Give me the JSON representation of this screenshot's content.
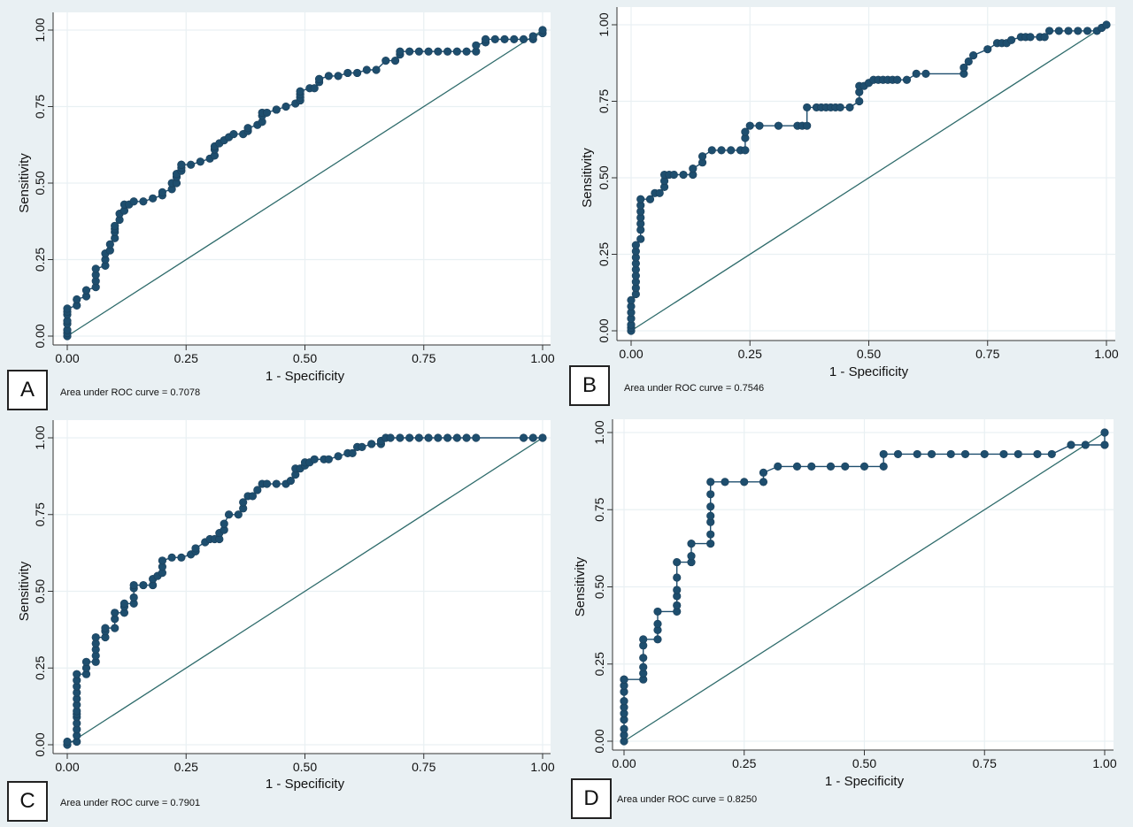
{
  "chart_data": [
    {
      "type": "scatter",
      "panel_label": "A",
      "xlabel": "1 - Specificity",
      "ylabel": "Sensitivity",
      "xlim": [
        0,
        1
      ],
      "ylim": [
        0,
        1
      ],
      "xticks": [
        "0.00",
        "0.25",
        "0.50",
        "0.75",
        "1.00"
      ],
      "yticks": [
        "0.00",
        "0.25",
        "0.50",
        "0.75",
        "1.00"
      ],
      "grid": true,
      "note": "Area under ROC curve = 0.7078",
      "roc_x": [
        0,
        0,
        0,
        0,
        0,
        0,
        0,
        0,
        0.02,
        0.02,
        0.04,
        0.04,
        0.06,
        0.06,
        0.06,
        0.06,
        0.08,
        0.08,
        0.08,
        0.09,
        0.09,
        0.1,
        0.1,
        0.1,
        0.1,
        0.11,
        0.11,
        0.12,
        0.12,
        0.13,
        0.14,
        0.16,
        0.18,
        0.2,
        0.2,
        0.22,
        0.22,
        0.23,
        0.23,
        0.23,
        0.24,
        0.24,
        0.24,
        0.24,
        0.26,
        0.28,
        0.3,
        0.31,
        0.31,
        0.31,
        0.32,
        0.33,
        0.34,
        0.35,
        0.37,
        0.38,
        0.38,
        0.4,
        0.41,
        0.41,
        0.41,
        0.42,
        0.44,
        0.44,
        0.46,
        0.48,
        0.49,
        0.49,
        0.49,
        0.49,
        0.51,
        0.52,
        0.53,
        0.53,
        0.53,
        0.55,
        0.57,
        0.59,
        0.61,
        0.63,
        0.65,
        0.67,
        0.69,
        0.7,
        0.7,
        0.72,
        0.74,
        0.76,
        0.78,
        0.8,
        0.82,
        0.84,
        0.86,
        0.86,
        0.88,
        0.88,
        0.9,
        0.92,
        0.94,
        0.96,
        0.98,
        0.98,
        1,
        1
      ],
      "roc_y": [
        0,
        0.01,
        0.02,
        0.04,
        0.05,
        0.07,
        0.08,
        0.09,
        0.1,
        0.12,
        0.13,
        0.15,
        0.16,
        0.18,
        0.2,
        0.22,
        0.23,
        0.25,
        0.27,
        0.28,
        0.3,
        0.32,
        0.34,
        0.35,
        0.36,
        0.38,
        0.4,
        0.41,
        0.43,
        0.43,
        0.44,
        0.44,
        0.45,
        0.46,
        0.47,
        0.48,
        0.5,
        0.5,
        0.52,
        0.53,
        0.54,
        0.55,
        0.56,
        0.56,
        0.56,
        0.57,
        0.58,
        0.59,
        0.61,
        0.62,
        0.63,
        0.64,
        0.65,
        0.66,
        0.66,
        0.67,
        0.68,
        0.69,
        0.7,
        0.72,
        0.73,
        0.73,
        0.74,
        0.74,
        0.75,
        0.76,
        0.77,
        0.78,
        0.79,
        0.8,
        0.81,
        0.81,
        0.83,
        0.84,
        0.84,
        0.85,
        0.85,
        0.86,
        0.86,
        0.87,
        0.87,
        0.9,
        0.9,
        0.92,
        0.93,
        0.93,
        0.93,
        0.93,
        0.93,
        0.93,
        0.93,
        0.93,
        0.93,
        0.95,
        0.96,
        0.97,
        0.97,
        0.97,
        0.97,
        0.97,
        0.97,
        0.98,
        0.99,
        1
      ]
    },
    {
      "type": "scatter",
      "panel_label": "B",
      "xlabel": "1 - Specificity",
      "ylabel": "Sensitivity",
      "xlim": [
        0,
        1
      ],
      "ylim": [
        0,
        1
      ],
      "xticks": [
        "0.00",
        "0.25",
        "0.50",
        "0.75",
        "1.00"
      ],
      "yticks": [
        "0.00",
        "0.25",
        "0.50",
        "0.75",
        "1.00"
      ],
      "grid": true,
      "note": "Area under ROC curve = 0.7546",
      "roc_x": [
        0,
        0,
        0,
        0,
        0,
        0,
        0,
        0.01,
        0.01,
        0.01,
        0.01,
        0.01,
        0.01,
        0.01,
        0.01,
        0.01,
        0.02,
        0.02,
        0.02,
        0.02,
        0.02,
        0.02,
        0.02,
        0.04,
        0.05,
        0.06,
        0.07,
        0.07,
        0.07,
        0.08,
        0.09,
        0.11,
        0.13,
        0.13,
        0.15,
        0.15,
        0.17,
        0.19,
        0.21,
        0.23,
        0.24,
        0.24,
        0.24,
        0.25,
        0.27,
        0.31,
        0.35,
        0.36,
        0.37,
        0.37,
        0.39,
        0.4,
        0.41,
        0.42,
        0.43,
        0.44,
        0.46,
        0.48,
        0.48,
        0.48,
        0.49,
        0.5,
        0.51,
        0.52,
        0.53,
        0.54,
        0.55,
        0.56,
        0.58,
        0.6,
        0.62,
        0.7,
        0.7,
        0.71,
        0.72,
        0.75,
        0.77,
        0.78,
        0.79,
        0.8,
        0.82,
        0.83,
        0.84,
        0.86,
        0.87,
        0.88,
        0.9,
        0.92,
        0.94,
        0.96,
        0.98,
        0.99,
        1
      ],
      "roc_y": [
        0,
        0.01,
        0.02,
        0.04,
        0.06,
        0.08,
        0.1,
        0.12,
        0.14,
        0.16,
        0.18,
        0.2,
        0.22,
        0.24,
        0.26,
        0.28,
        0.3,
        0.33,
        0.35,
        0.37,
        0.39,
        0.41,
        0.43,
        0.43,
        0.45,
        0.45,
        0.47,
        0.49,
        0.51,
        0.51,
        0.51,
        0.51,
        0.51,
        0.53,
        0.55,
        0.57,
        0.59,
        0.59,
        0.59,
        0.59,
        0.59,
        0.63,
        0.65,
        0.67,
        0.67,
        0.67,
        0.67,
        0.67,
        0.67,
        0.73,
        0.73,
        0.73,
        0.73,
        0.73,
        0.73,
        0.73,
        0.73,
        0.75,
        0.78,
        0.8,
        0.8,
        0.81,
        0.82,
        0.82,
        0.82,
        0.82,
        0.82,
        0.82,
        0.82,
        0.84,
        0.84,
        0.84,
        0.86,
        0.88,
        0.9,
        0.92,
        0.94,
        0.94,
        0.94,
        0.95,
        0.96,
        0.96,
        0.96,
        0.96,
        0.96,
        0.98,
        0.98,
        0.98,
        0.98,
        0.98,
        0.98,
        0.99,
        1
      ]
    },
    {
      "type": "scatter",
      "panel_label": "C",
      "xlabel": "1 - Specificity",
      "ylabel": "Sensitivity",
      "xlim": [
        0,
        1
      ],
      "ylim": [
        0,
        1
      ],
      "xticks": [
        "0.00",
        "0.25",
        "0.50",
        "0.75",
        "1.00"
      ],
      "yticks": [
        "0.00",
        "0.25",
        "0.50",
        "0.75",
        "1.00"
      ],
      "grid": true,
      "note": "Area under ROC curve = 0.7901",
      "roc_x": [
        0,
        0,
        0.02,
        0.02,
        0.02,
        0.02,
        0.02,
        0.02,
        0.02,
        0.02,
        0.02,
        0.02,
        0.02,
        0.02,
        0.02,
        0.04,
        0.04,
        0.04,
        0.06,
        0.06,
        0.06,
        0.06,
        0.06,
        0.08,
        0.08,
        0.08,
        0.1,
        0.1,
        0.1,
        0.12,
        0.12,
        0.12,
        0.14,
        0.14,
        0.14,
        0.14,
        0.16,
        0.18,
        0.18,
        0.19,
        0.2,
        0.2,
        0.2,
        0.22,
        0.24,
        0.26,
        0.27,
        0.27,
        0.29,
        0.3,
        0.31,
        0.32,
        0.32,
        0.33,
        0.33,
        0.34,
        0.36,
        0.37,
        0.37,
        0.38,
        0.39,
        0.4,
        0.41,
        0.42,
        0.44,
        0.46,
        0.47,
        0.48,
        0.48,
        0.49,
        0.5,
        0.5,
        0.51,
        0.52,
        0.54,
        0.55,
        0.57,
        0.59,
        0.6,
        0.61,
        0.62,
        0.64,
        0.66,
        0.66,
        0.67,
        0.68,
        0.7,
        0.72,
        0.74,
        0.76,
        0.78,
        0.8,
        0.82,
        0.84,
        0.86,
        0.96,
        0.98,
        1
      ],
      "roc_y": [
        0,
        0.01,
        0.01,
        0.03,
        0.05,
        0.07,
        0.09,
        0.1,
        0.11,
        0.13,
        0.15,
        0.17,
        0.19,
        0.21,
        0.23,
        0.23,
        0.25,
        0.27,
        0.27,
        0.29,
        0.31,
        0.33,
        0.35,
        0.35,
        0.37,
        0.38,
        0.38,
        0.41,
        0.43,
        0.43,
        0.45,
        0.46,
        0.46,
        0.48,
        0.51,
        0.52,
        0.52,
        0.52,
        0.54,
        0.55,
        0.56,
        0.58,
        0.6,
        0.61,
        0.61,
        0.62,
        0.63,
        0.64,
        0.66,
        0.67,
        0.67,
        0.67,
        0.69,
        0.7,
        0.72,
        0.75,
        0.75,
        0.77,
        0.79,
        0.81,
        0.81,
        0.83,
        0.85,
        0.85,
        0.85,
        0.85,
        0.86,
        0.88,
        0.9,
        0.9,
        0.91,
        0.92,
        0.92,
        0.93,
        0.93,
        0.93,
        0.94,
        0.95,
        0.95,
        0.97,
        0.97,
        0.98,
        0.98,
        0.99,
        1,
        1,
        1,
        1,
        1,
        1,
        1,
        1,
        1,
        1,
        1,
        1,
        1,
        1
      ]
    },
    {
      "type": "scatter",
      "panel_label": "D",
      "xlabel": "1 - Specificity",
      "ylabel": "Sensitivity",
      "xlim": [
        0,
        1
      ],
      "ylim": [
        0,
        1
      ],
      "xticks": [
        "0.00",
        "0.25",
        "0.50",
        "0.75",
        "1.00"
      ],
      "yticks": [
        "0.00",
        "0.25",
        "0.50",
        "0.75",
        "1.00"
      ],
      "grid": true,
      "note": "Area under ROC curve = 0.8250",
      "roc_x": [
        0,
        0,
        0,
        0,
        0,
        0,
        0,
        0,
        0,
        0,
        0,
        0.04,
        0.04,
        0.04,
        0.04,
        0.04,
        0.04,
        0.07,
        0.07,
        0.07,
        0.07,
        0.11,
        0.11,
        0.11,
        0.11,
        0.11,
        0.11,
        0.14,
        0.14,
        0.14,
        0.18,
        0.18,
        0.18,
        0.18,
        0.18,
        0.18,
        0.18,
        0.21,
        0.25,
        0.29,
        0.29,
        0.32,
        0.36,
        0.39,
        0.43,
        0.46,
        0.5,
        0.54,
        0.54,
        0.57,
        0.61,
        0.64,
        0.68,
        0.71,
        0.75,
        0.79,
        0.82,
        0.86,
        0.89,
        0.93,
        0.96,
        1,
        1
      ],
      "roc_y": [
        0,
        0.02,
        0.04,
        0.07,
        0.09,
        0.11,
        0.13,
        0.16,
        0.18,
        0.2,
        0.2,
        0.2,
        0.22,
        0.24,
        0.27,
        0.31,
        0.33,
        0.33,
        0.36,
        0.38,
        0.42,
        0.42,
        0.44,
        0.47,
        0.49,
        0.53,
        0.58,
        0.58,
        0.6,
        0.64,
        0.64,
        0.67,
        0.71,
        0.73,
        0.76,
        0.8,
        0.84,
        0.84,
        0.84,
        0.84,
        0.87,
        0.89,
        0.89,
        0.89,
        0.89,
        0.89,
        0.89,
        0.89,
        0.93,
        0.93,
        0.93,
        0.93,
        0.93,
        0.93,
        0.93,
        0.93,
        0.93,
        0.93,
        0.93,
        0.96,
        0.96,
        0.96,
        1
      ]
    }
  ]
}
